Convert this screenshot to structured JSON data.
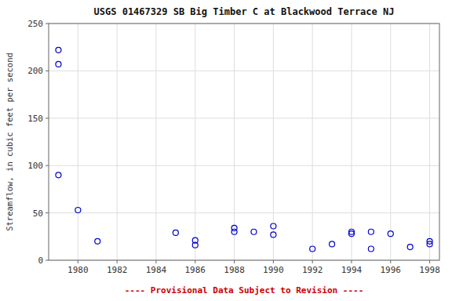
{
  "chart_data": {
    "type": "scatter",
    "title": "USGS 01467329 SB Big Timber C at Blackwood Terrace NJ",
    "ylabel": "Streamflow, in cubic feet per second",
    "annotations": [
      {
        "text": "---- Provisional Data Subject to Revision ----",
        "color": "#cc0000"
      }
    ],
    "x": [
      1979,
      1979,
      1979,
      1980,
      1981,
      1985,
      1986,
      1986,
      1988,
      1988,
      1989,
      1990,
      1990,
      1992,
      1993,
      1994,
      1994,
      1995,
      1995,
      1996,
      1997,
      1998,
      1998
    ],
    "y": [
      222,
      207,
      90,
      53,
      20,
      29,
      16,
      21,
      34,
      30,
      30,
      27,
      36,
      12,
      17,
      28,
      30,
      30,
      12,
      28,
      14,
      17,
      20
    ],
    "xlim": [
      1978.5,
      1998.5
    ],
    "ylim": [
      0,
      250
    ],
    "xticks": [
      1980,
      1982,
      1984,
      1986,
      1988,
      1990,
      1992,
      1994,
      1996,
      1998
    ],
    "yticks": [
      0,
      50,
      100,
      150,
      200,
      250
    ],
    "grid": true,
    "color": "#0000cc",
    "marker": "open-circle"
  }
}
